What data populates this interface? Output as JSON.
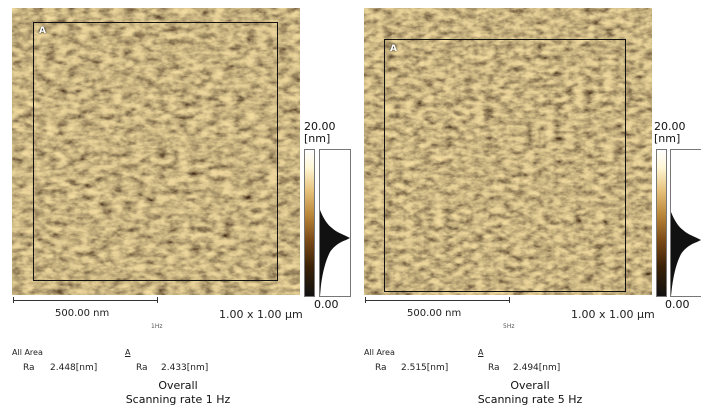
{
  "panels": [
    {
      "roi_label": "A",
      "colorbar_max": "20.00",
      "colorbar_unit": "[nm]",
      "colorbar_min": "0.00",
      "scalebar_label": "500.00 nm",
      "rate_tag": "1Hz",
      "scan_size": "1.00 x 1.00 μm",
      "all_area_label": "All Area",
      "roi_header": "A",
      "ra_label_all": "Ra",
      "ra_value_all": "2.448[nm]",
      "ra_label_roi": "Ra",
      "ra_value_roi": "2.433[nm]",
      "caption_line1": "Overall",
      "caption_line2": "Scanning rate 1 Hz"
    },
    {
      "roi_label": "A",
      "colorbar_max": "20.00",
      "colorbar_unit": "[nm]",
      "colorbar_min": "0.00",
      "scalebar_label": "500.00 nm",
      "rate_tag": "5Hz",
      "scan_size": "1.00 x 1.00 μm",
      "all_area_label": "All Area",
      "roi_header": "A",
      "ra_label_all": "Ra",
      "ra_value_all": "2.515[nm]",
      "ra_label_roi": "Ra",
      "ra_value_roi": "2.494[nm]",
      "caption_line1": "Overall",
      "caption_line2": "Scanning rate 5 Hz"
    }
  ],
  "colors": {
    "afm_dark": "#3b2410",
    "afm_mid": "#a47338",
    "afm_light": "#f3dca0"
  }
}
